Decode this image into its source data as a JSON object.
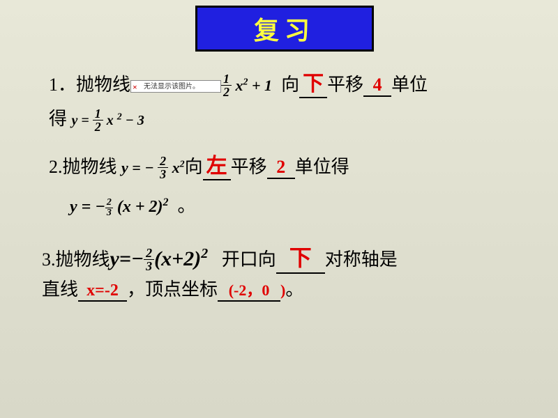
{
  "title": "复习",
  "colors": {
    "title_bg": "#2020e0",
    "title_border": "#000000",
    "title_text": "#ffff40",
    "answer": "#e00000",
    "background_top": "#e8e8d8",
    "background_bottom": "#d8d8c8"
  },
  "q1": {
    "label": "1．抛物线",
    "broken_alt": "无法显示该图片。",
    "formula1_frac_num": "1",
    "formula1_frac_den": "2",
    "formula1_var": "x",
    "formula1_exp": "2",
    "formula1_tail": "+ 1",
    "text1": "向",
    "ans1": "下",
    "text2": "平移",
    "ans2": "4",
    "text3": "单位",
    "line2_pre": "得",
    "formula2_pre": "y  = ",
    "formula2_frac_num": "1",
    "formula2_frac_den": "2",
    "formula2_var": "x",
    "formula2_exp": "2",
    "formula2_tail": "−  3"
  },
  "q2": {
    "label": "2.抛物线",
    "formula1_pre": "y  =  − ",
    "formula1_frac_num": "2",
    "formula1_frac_den": "3",
    "formula1_var": "x",
    "formula1_exp": "2",
    "text1": "向",
    "ans1": "左",
    "text2": "平移",
    "ans2": "2",
    "text3": "单位得",
    "formula2": "y = −",
    "formula2_frac_num": "2",
    "formula2_frac_den": "3",
    "formula2_tail": "(x + 2)",
    "formula2_exp": "2",
    "period": "。"
  },
  "q3": {
    "label": "3.抛物线",
    "formula_pre": "y=−",
    "formula_frac_num": "2",
    "formula_frac_den": "3",
    "formula_tail": "(x+2)",
    "formula_exp": "2",
    "text1": "开口向",
    "ans1": "下",
    "text2": "对称轴是",
    "line2_pre": "直线",
    "ans2": "x=-2",
    "text3": "，顶点坐标",
    "ans3": "(-2，0",
    "ans3_tail": ")",
    "period": "。"
  }
}
